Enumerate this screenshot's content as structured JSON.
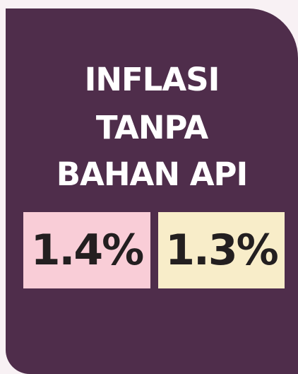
{
  "card": {
    "title_lines": [
      "INFLASI",
      "TANPA",
      "BAHAN API"
    ],
    "values": [
      "1.4%",
      "1.3%"
    ]
  }
}
